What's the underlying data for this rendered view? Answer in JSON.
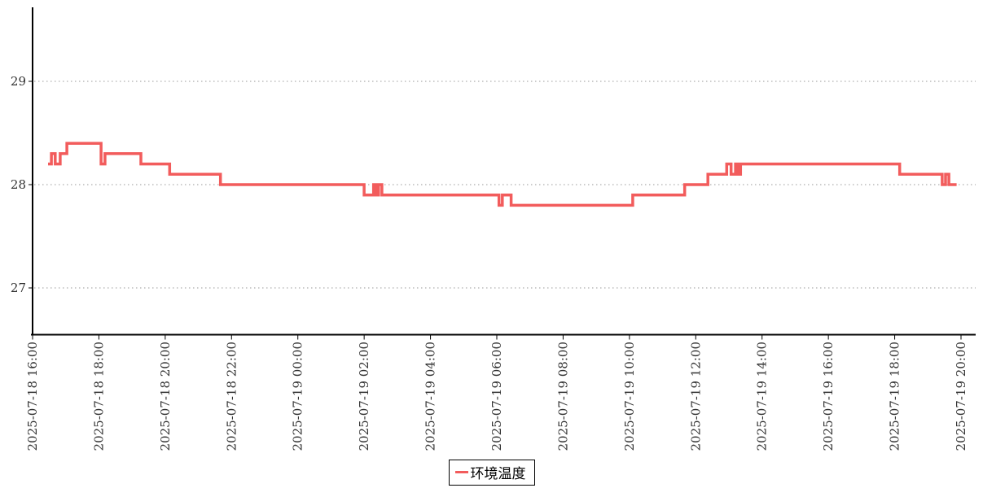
{
  "legend": {
    "label": "环境温度",
    "line_color": "#f25c5c"
  },
  "axis": {
    "text_color": "#333333",
    "axis_color": "#000000",
    "grid_color": "#999999"
  },
  "chart_data": {
    "type": "line",
    "step": "after",
    "title": "",
    "xlabel": "",
    "ylabel": "",
    "series_name": "环境温度",
    "line_color": "#f25c5c",
    "grid": "horizontal dotted",
    "legend_position": "bottom-center",
    "y_ticks": [
      27,
      28,
      29
    ],
    "y_range": [
      26.55,
      29.72
    ],
    "x_range": [
      "2025-07-18 16:00",
      "2025-07-19 20:00"
    ],
    "x_tick_labels": [
      "2025-07-18 16:00",
      "2025-07-18 18:00",
      "2025-07-18 20:00",
      "2025-07-18 22:00",
      "2025-07-19 00:00",
      "2025-07-19 02:00",
      "2025-07-19 04:00",
      "2025-07-19 06:00",
      "2025-07-19 08:00",
      "2025-07-19 10:00",
      "2025-07-19 12:00",
      "2025-07-19 14:00",
      "2025-07-19 16:00",
      "2025-07-19 18:00",
      "2025-07-19 20:00"
    ],
    "points": [
      [
        "2025-07-18 16:28",
        28.2
      ],
      [
        "2025-07-18 16:34",
        28.3
      ],
      [
        "2025-07-18 16:41",
        28.2
      ],
      [
        "2025-07-18 16:50",
        28.3
      ],
      [
        "2025-07-18 17:02",
        28.4
      ],
      [
        "2025-07-18 18:04",
        28.2
      ],
      [
        "2025-07-18 18:11",
        28.3
      ],
      [
        "2025-07-18 19:16",
        28.2
      ],
      [
        "2025-07-18 20:08",
        28.1
      ],
      [
        "2025-07-18 21:40",
        28.0
      ],
      [
        "2025-07-19 02:00",
        27.9
      ],
      [
        "2025-07-19 02:17",
        28.0
      ],
      [
        "2025-07-19 02:22",
        27.9
      ],
      [
        "2025-07-19 02:26",
        28.0
      ],
      [
        "2025-07-19 02:32",
        27.9
      ],
      [
        "2025-07-19 06:04",
        27.8
      ],
      [
        "2025-07-19 06:10",
        27.9
      ],
      [
        "2025-07-19 06:26",
        27.8
      ],
      [
        "2025-07-19 10:06",
        27.9
      ],
      [
        "2025-07-19 11:40",
        28.0
      ],
      [
        "2025-07-19 12:22",
        28.1
      ],
      [
        "2025-07-19 12:56",
        28.2
      ],
      [
        "2025-07-19 13:04",
        28.1
      ],
      [
        "2025-07-19 13:12",
        28.2
      ],
      [
        "2025-07-19 13:16",
        28.1
      ],
      [
        "2025-07-19 13:21",
        28.2
      ],
      [
        "2025-07-19 18:09",
        28.1
      ],
      [
        "2025-07-19 19:26",
        28.0
      ],
      [
        "2025-07-19 19:32",
        28.1
      ],
      [
        "2025-07-19 19:38",
        28.0
      ]
    ],
    "series_end": "2025-07-19 19:52"
  }
}
